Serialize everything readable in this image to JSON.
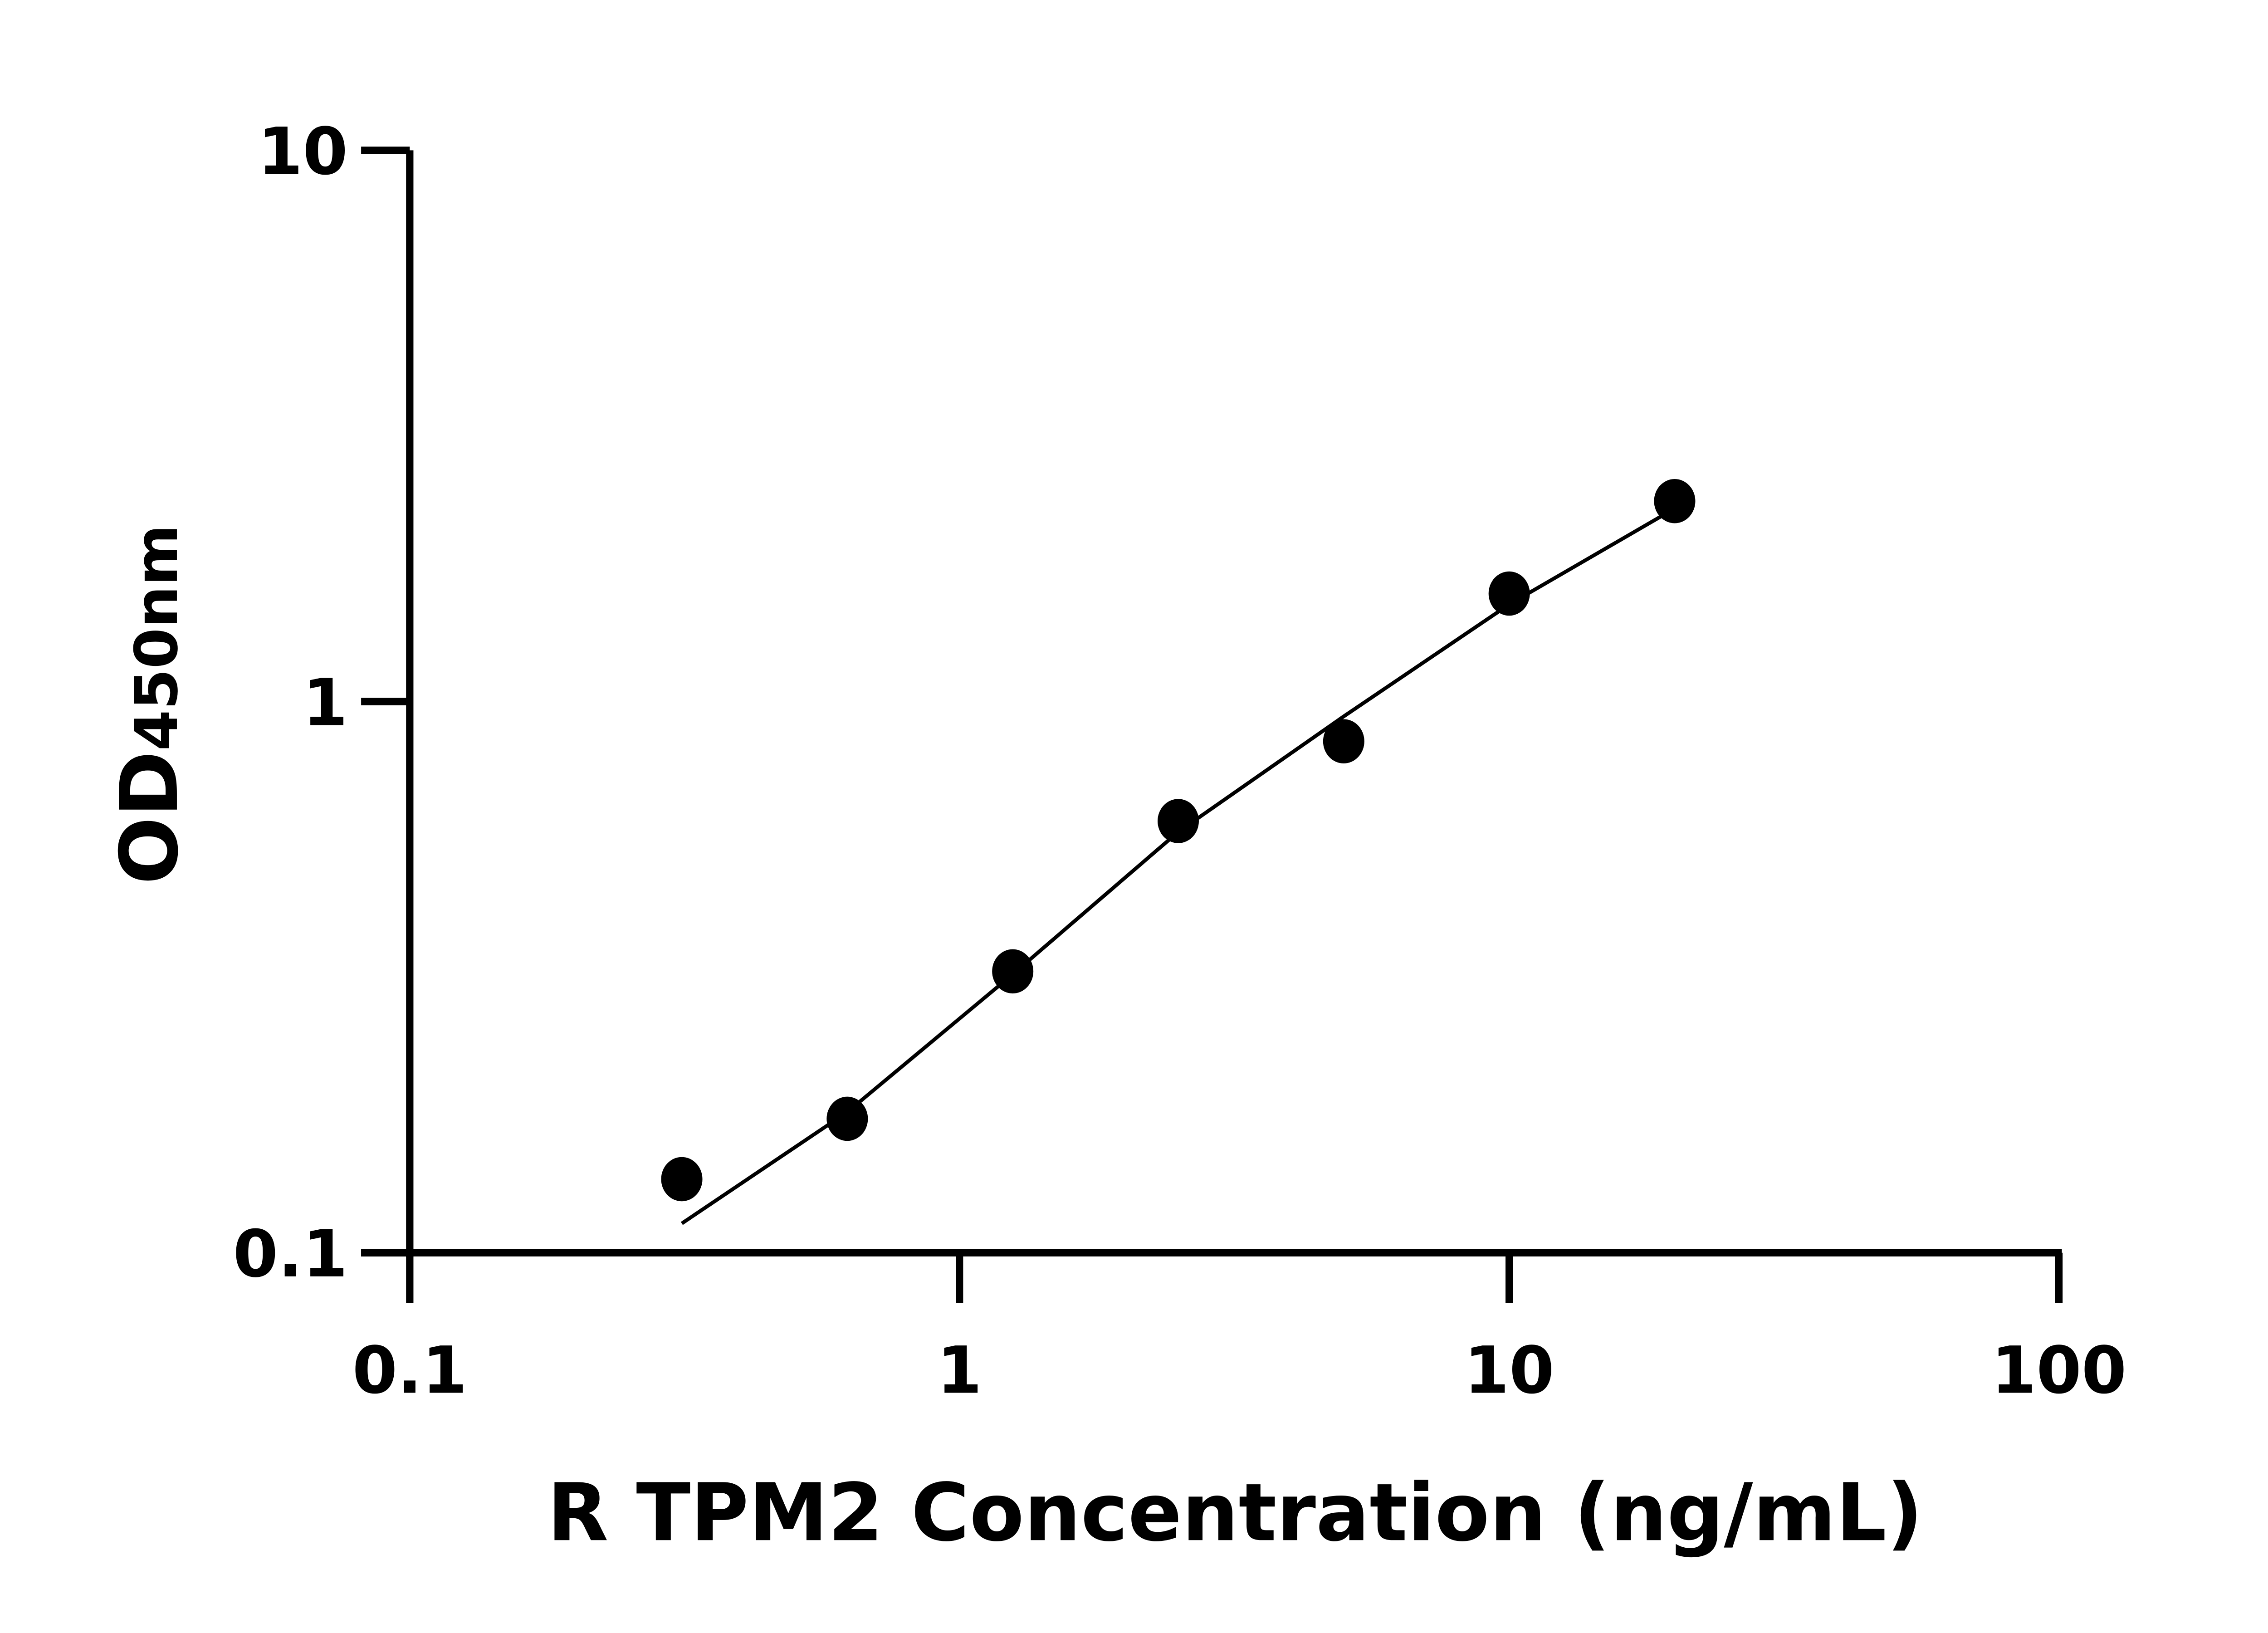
{
  "chart_data": {
    "type": "scatter",
    "title": "",
    "xlabel": "R TPM2 Concentration (ng/mL)",
    "ylabel_main": "OD",
    "ylabel_sub": "450nm",
    "x_scale": "log",
    "y_scale": "log",
    "xlim": [
      0.1,
      100
    ],
    "ylim": [
      0.1,
      10
    ],
    "x_ticks": [
      "0.1",
      "1",
      "10",
      "100"
    ],
    "y_ticks": [
      "0.1",
      "1",
      "10"
    ],
    "grid": false,
    "legend": "none",
    "points": {
      "x": [
        0.3125,
        0.625,
        1.25,
        2.5,
        5,
        10,
        20
      ],
      "y": [
        0.136,
        0.175,
        0.324,
        0.607,
        0.847,
        1.57,
        2.31
      ]
    },
    "fit_curve": {
      "x": [
        0.3125,
        0.625,
        1.25,
        2.5,
        5,
        10,
        20
      ],
      "y": [
        0.113,
        0.18,
        0.32,
        0.58,
        0.94,
        1.5,
        2.24
      ]
    },
    "colors": {
      "points": "#000000",
      "line": "#000000",
      "axes": "#000000"
    }
  }
}
